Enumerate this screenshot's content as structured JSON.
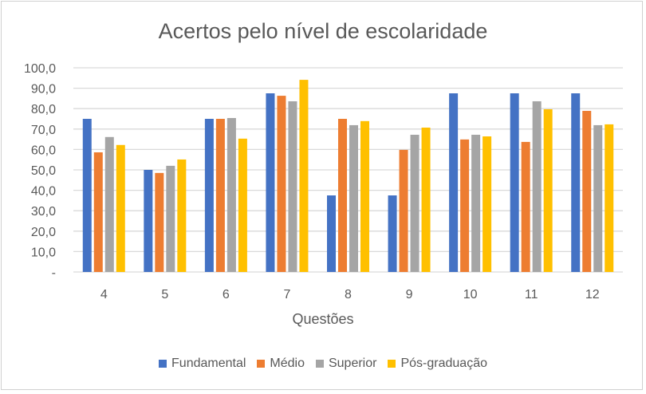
{
  "chart_data": {
    "type": "bar",
    "title": "Acertos pelo nível de escolaridade",
    "xlabel": "Questões",
    "ylabel": "",
    "ylim": [
      0,
      100
    ],
    "yticks": [
      "-",
      "10,0",
      "20,0",
      "30,0",
      "40,0",
      "50,0",
      "60,0",
      "70,0",
      "80,0",
      "90,0",
      "100,0"
    ],
    "categories": [
      "4",
      "5",
      "6",
      "7",
      "8",
      "9",
      "10",
      "11",
      "12"
    ],
    "grid": true,
    "legend_position": "bottom",
    "series": [
      {
        "name": "Fundamental",
        "color": "#4472C4",
        "values": [
          75.0,
          50.0,
          75.0,
          87.5,
          37.5,
          37.5,
          87.5,
          87.5,
          87.5
        ]
      },
      {
        "name": "Médio",
        "color": "#ED7D31",
        "values": [
          58.6,
          48.5,
          75.0,
          86.3,
          75.0,
          59.8,
          64.9,
          63.7,
          78.9
        ]
      },
      {
        "name": "Superior",
        "color": "#A5A5A5",
        "values": [
          66.1,
          52.0,
          75.4,
          83.6,
          71.9,
          67.2,
          67.2,
          83.6,
          71.9
        ]
      },
      {
        "name": "Pós-graduação",
        "color": "#FFC000",
        "values": [
          62.2,
          55.1,
          65.3,
          94.1,
          73.9,
          70.7,
          66.4,
          79.7,
          72.3
        ]
      }
    ]
  }
}
